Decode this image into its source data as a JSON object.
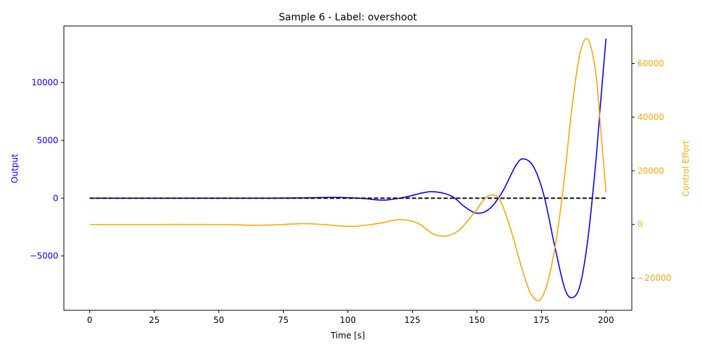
{
  "chart_data": {
    "type": "line",
    "title": "Sample 6 - Label: overshoot",
    "xlabel": "Time [s]",
    "ylabel": "Output",
    "y2label": "Control Effort",
    "xlim": [
      -10,
      210
    ],
    "ylim": [
      -9700,
      14900
    ],
    "y2lim": [
      -32000,
      74000
    ],
    "xticks": [
      0,
      25,
      50,
      75,
      100,
      125,
      150,
      175,
      200
    ],
    "yticks": [
      -5000,
      0,
      5000,
      10000
    ],
    "y2ticks": [
      -20000,
      0,
      20000,
      40000,
      60000
    ],
    "colors": {
      "output": "#0000ff",
      "control": "#ffa500",
      "setpoint": "#000000"
    },
    "grid": false,
    "series": [
      {
        "key": "output",
        "axis": "left",
        "style": "solid",
        "x": [
          0,
          25,
          50,
          70,
          85,
          95,
          105,
          114,
          122,
          132,
          140,
          145,
          150,
          155,
          160,
          165,
          168,
          172,
          176,
          180,
          184,
          187,
          190,
          193,
          196,
          198,
          200
        ],
        "y": [
          0,
          0,
          0,
          0,
          30,
          70,
          -10,
          -170,
          80,
          560,
          200,
          -700,
          -1300,
          -900,
          600,
          2800,
          3400,
          2700,
          200,
          -4000,
          -7800,
          -8600,
          -7500,
          -3500,
          3000,
          8500,
          13800
        ]
      },
      {
        "key": "setpoint",
        "axis": "left",
        "style": "dashed",
        "x": [
          0,
          200
        ],
        "y": [
          0,
          0
        ]
      },
      {
        "key": "control",
        "axis": "right",
        "style": "solid",
        "x": [
          0,
          25,
          50,
          65,
          75,
          83,
          90,
          102,
          112,
          120,
          127,
          133,
          138,
          143,
          148,
          153,
          156,
          159,
          163,
          167,
          171,
          175,
          179,
          183,
          187,
          190,
          193,
          196,
          198,
          200
        ],
        "y": [
          0,
          0,
          0,
          -300,
          0,
          300,
          0,
          -700,
          400,
          1800,
          500,
          -3500,
          -4300,
          -2200,
          3200,
          9500,
          11000,
          9000,
          -1500,
          -15000,
          -26000,
          -27500,
          -15000,
          10000,
          45000,
          64000,
          69000,
          57000,
          35000,
          12000
        ]
      }
    ]
  }
}
